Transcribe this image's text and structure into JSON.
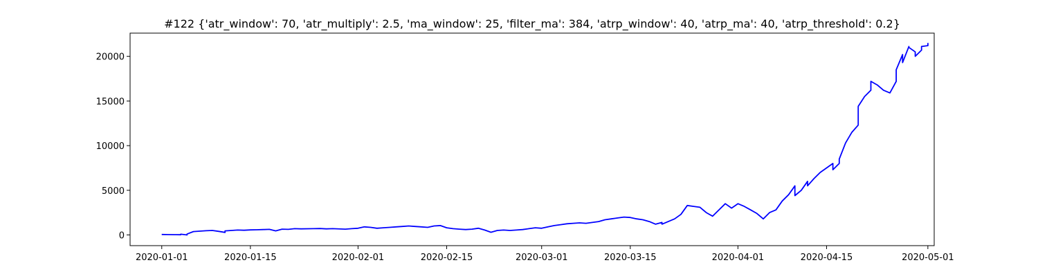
{
  "chart_data": {
    "type": "line",
    "title": "#122 {'atr_window': 70, 'atr_multiply': 2.5, 'ma_window': 25, 'filter_ma': 384, 'atrp_window': 40, 'atrp_ma': 40, 'atrp_threshold': 0.2}",
    "xlabel": "",
    "ylabel": "",
    "xlim": [
      "2019-12-27",
      "2020-05-02"
    ],
    "ylim": [
      -1200,
      22600
    ],
    "grid": false,
    "x_ticks": [
      "2020-01-01",
      "2020-01-15",
      "2020-02-01",
      "2020-02-15",
      "2020-03-01",
      "2020-03-15",
      "2020-04-01",
      "2020-04-15",
      "2020-05-01"
    ],
    "y_ticks": [
      0,
      5000,
      10000,
      15000,
      20000
    ],
    "series": [
      {
        "color": "#0000ff",
        "points": [
          [
            "2020-01-01",
            50
          ],
          [
            "2020-01-02",
            40
          ],
          [
            "2020-01-03",
            30
          ],
          [
            "2020-01-04",
            20
          ],
          [
            "2020-01-04",
            80
          ],
          [
            "2020-01-05",
            0
          ],
          [
            "2020-01-05",
            100
          ],
          [
            "2020-01-06",
            380
          ],
          [
            "2020-01-07",
            420
          ],
          [
            "2020-01-08",
            470
          ],
          [
            "2020-01-09",
            500
          ],
          [
            "2020-01-10",
            400
          ],
          [
            "2020-01-11",
            280
          ],
          [
            "2020-01-11",
            450
          ],
          [
            "2020-01-12",
            500
          ],
          [
            "2020-01-13",
            550
          ],
          [
            "2020-01-14",
            520
          ],
          [
            "2020-01-15",
            560
          ],
          [
            "2020-01-16",
            580
          ],
          [
            "2020-01-17",
            600
          ],
          [
            "2020-01-18",
            620
          ],
          [
            "2020-01-19",
            450
          ],
          [
            "2020-01-20",
            650
          ],
          [
            "2020-01-21",
            620
          ],
          [
            "2020-01-22",
            700
          ],
          [
            "2020-01-23",
            680
          ],
          [
            "2020-01-25",
            700
          ],
          [
            "2020-01-26",
            720
          ],
          [
            "2020-01-27",
            680
          ],
          [
            "2020-01-28",
            700
          ],
          [
            "2020-01-30",
            650
          ],
          [
            "2020-01-31",
            700
          ],
          [
            "2020-02-01",
            750
          ],
          [
            "2020-02-02",
            900
          ],
          [
            "2020-02-03",
            850
          ],
          [
            "2020-02-04",
            750
          ],
          [
            "2020-02-05",
            800
          ],
          [
            "2020-02-06",
            850
          ],
          [
            "2020-02-07",
            900
          ],
          [
            "2020-02-08",
            950
          ],
          [
            "2020-02-09",
            1000
          ],
          [
            "2020-02-10",
            950
          ],
          [
            "2020-02-11",
            900
          ],
          [
            "2020-02-12",
            850
          ],
          [
            "2020-02-13",
            1000
          ],
          [
            "2020-02-14",
            1050
          ],
          [
            "2020-02-15",
            800
          ],
          [
            "2020-02-16",
            700
          ],
          [
            "2020-02-17",
            650
          ],
          [
            "2020-02-18",
            600
          ],
          [
            "2020-02-19",
            650
          ],
          [
            "2020-02-20",
            750
          ],
          [
            "2020-02-21",
            550
          ],
          [
            "2020-02-22",
            300
          ],
          [
            "2020-02-23",
            500
          ],
          [
            "2020-02-24",
            550
          ],
          [
            "2020-02-25",
            500
          ],
          [
            "2020-02-26",
            550
          ],
          [
            "2020-02-27",
            600
          ],
          [
            "2020-02-28",
            700
          ],
          [
            "2020-02-29",
            800
          ],
          [
            "2020-03-01",
            750
          ],
          [
            "2020-03-02",
            900
          ],
          [
            "2020-03-03",
            1050
          ],
          [
            "2020-03-04",
            1150
          ],
          [
            "2020-03-05",
            1250
          ],
          [
            "2020-03-06",
            1300
          ],
          [
            "2020-03-07",
            1350
          ],
          [
            "2020-03-08",
            1300
          ],
          [
            "2020-03-09",
            1400
          ],
          [
            "2020-03-10",
            1500
          ],
          [
            "2020-03-11",
            1700
          ],
          [
            "2020-03-12",
            1800
          ],
          [
            "2020-03-13",
            1900
          ],
          [
            "2020-03-14",
            2000
          ],
          [
            "2020-03-15",
            1950
          ],
          [
            "2020-03-16",
            1800
          ],
          [
            "2020-03-17",
            1700
          ],
          [
            "2020-03-18",
            1500
          ],
          [
            "2020-03-19",
            1200
          ],
          [
            "2020-03-20",
            1400
          ],
          [
            "2020-03-20",
            1200
          ],
          [
            "2020-03-21",
            1500
          ],
          [
            "2020-03-22",
            1800
          ],
          [
            "2020-03-23",
            2300
          ],
          [
            "2020-03-24",
            3300
          ],
          [
            "2020-03-25",
            3200
          ],
          [
            "2020-03-26",
            3100
          ],
          [
            "2020-03-27",
            2500
          ],
          [
            "2020-03-28",
            2100
          ],
          [
            "2020-03-29",
            2800
          ],
          [
            "2020-03-30",
            3500
          ],
          [
            "2020-03-31",
            3000
          ],
          [
            "2020-04-01",
            3500
          ],
          [
            "2020-04-02",
            3200
          ],
          [
            "2020-04-03",
            2800
          ],
          [
            "2020-04-04",
            2400
          ],
          [
            "2020-04-05",
            1800
          ],
          [
            "2020-04-06",
            2500
          ],
          [
            "2020-04-07",
            2800
          ],
          [
            "2020-04-08",
            3800
          ],
          [
            "2020-04-09",
            4500
          ],
          [
            "2020-04-10",
            5500
          ],
          [
            "2020-04-10",
            4400
          ],
          [
            "2020-04-11",
            5000
          ],
          [
            "2020-04-12",
            6000
          ],
          [
            "2020-04-12",
            5500
          ],
          [
            "2020-04-13",
            6300
          ],
          [
            "2020-04-14",
            7000
          ],
          [
            "2020-04-15",
            7500
          ],
          [
            "2020-04-16",
            8000
          ],
          [
            "2020-04-16",
            7300
          ],
          [
            "2020-04-17",
            8000
          ],
          [
            "2020-04-17",
            8500
          ],
          [
            "2020-04-18",
            10300
          ],
          [
            "2020-04-19",
            11500
          ],
          [
            "2020-04-20",
            12300
          ],
          [
            "2020-04-20",
            14400
          ],
          [
            "2020-04-21",
            15500
          ],
          [
            "2020-04-22",
            16200
          ],
          [
            "2020-04-22",
            17200
          ],
          [
            "2020-04-23",
            16800
          ],
          [
            "2020-04-24",
            16200
          ],
          [
            "2020-04-25",
            15900
          ],
          [
            "2020-04-26",
            17200
          ],
          [
            "2020-04-26",
            18500
          ],
          [
            "2020-04-27",
            20200
          ],
          [
            "2020-04-27",
            19300
          ],
          [
            "2020-04-28",
            21100
          ],
          [
            "2020-04-28",
            21000
          ],
          [
            "2020-04-29",
            20500
          ],
          [
            "2020-04-29",
            20000
          ],
          [
            "2020-04-30",
            20700
          ],
          [
            "2020-04-30",
            21100
          ],
          [
            "2020-05-01",
            21200
          ],
          [
            "2020-05-01",
            21500
          ]
        ]
      }
    ]
  }
}
